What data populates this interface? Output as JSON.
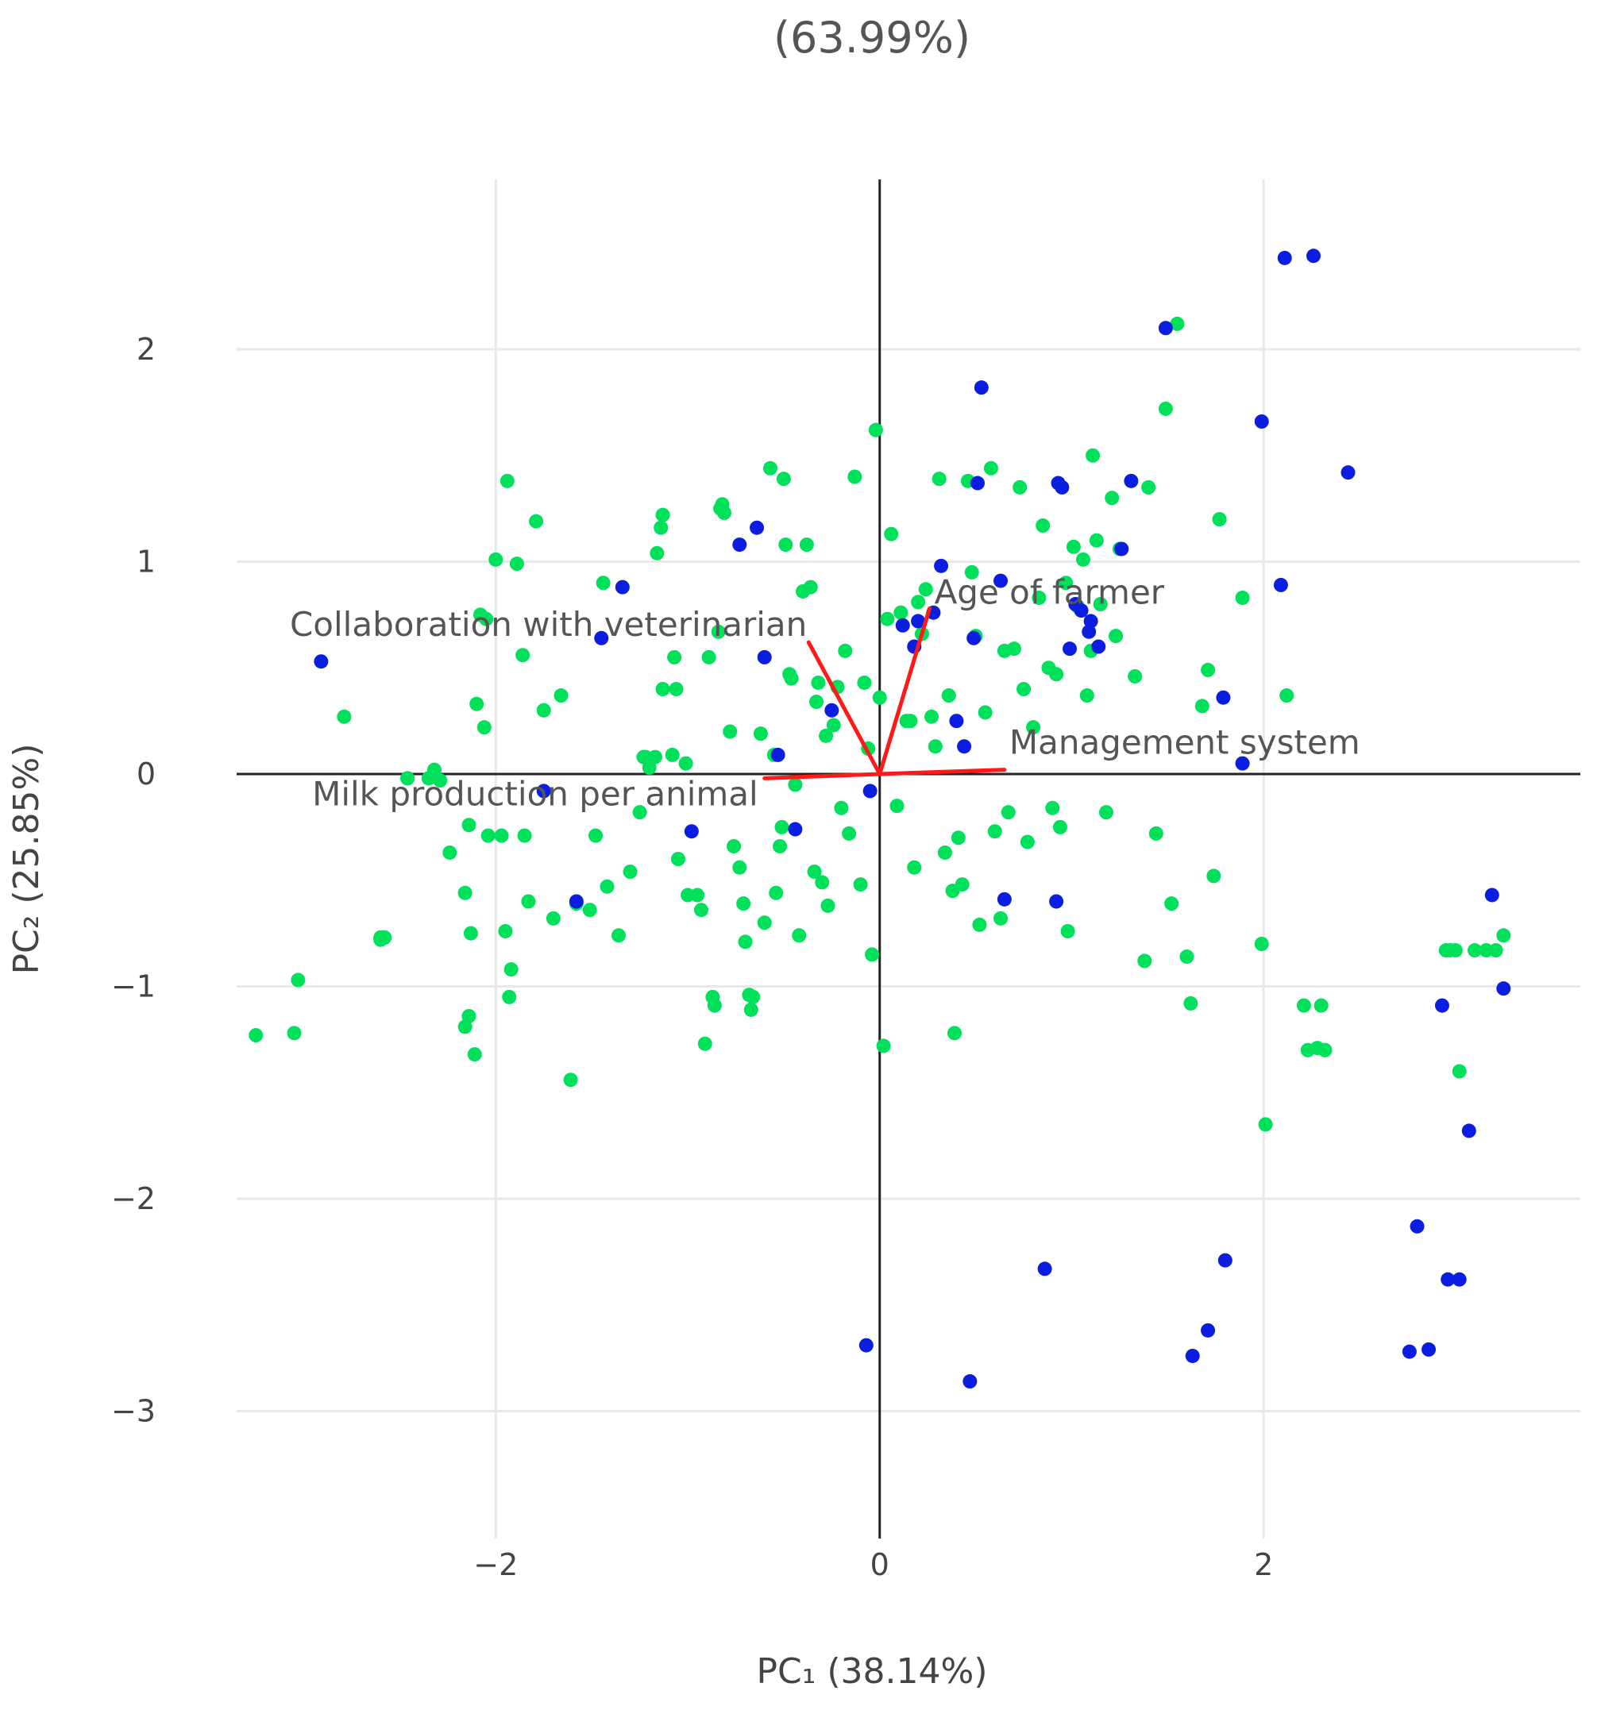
{
  "chart_data": {
    "type": "scatter",
    "title": "(63.99%)",
    "xlabel": "PC₁ (38.14%)",
    "ylabel": "PC₂ (25.85%)",
    "xlim": [
      -3.35,
      3.65
    ],
    "ylim": [
      -3.6,
      2.8
    ],
    "xticks": [
      -2,
      0,
      2
    ],
    "yticks": [
      -3,
      -2,
      -1,
      0,
      1,
      2
    ],
    "tick_labels_x": [
      "−2",
      "0",
      "2"
    ],
    "tick_labels_y": [
      "−3",
      "−2",
      "−1",
      "0",
      "1",
      "2"
    ],
    "grid": true,
    "colors": {
      "green": "#00e05a",
      "blue": "#0b1ee0",
      "loading": "#ff1a1a",
      "axis": "#222222",
      "grid": "#e8e8e8"
    },
    "loadings": [
      {
        "label": "Age of farmer",
        "x": 0.26,
        "y": 0.78
      },
      {
        "label": "Collaboration with veterinarian",
        "x": -0.37,
        "y": 0.62
      },
      {
        "label": "Management system",
        "x": 0.65,
        "y": 0.02
      },
      {
        "label": "Milk production per animal",
        "x": -0.6,
        "y": -0.02
      }
    ],
    "series": [
      {
        "color": "green",
        "points": [
          [
            -3.25,
            -1.23
          ],
          [
            -3.05,
            -1.22
          ],
          [
            -3.03,
            -0.97
          ],
          [
            -2.79,
            0.27
          ],
          [
            -2.6,
            -0.77
          ],
          [
            -2.6,
            -0.77
          ],
          [
            -2.58,
            -0.77
          ],
          [
            -2.58,
            -0.77
          ],
          [
            -2.59,
            -0.77
          ],
          [
            -2.59,
            -0.77
          ],
          [
            -2.58,
            -0.77
          ],
          [
            -2.6,
            -0.77
          ],
          [
            -2.6,
            -0.78
          ],
          [
            -2.6,
            -0.78
          ],
          [
            -2.6,
            -0.77
          ],
          [
            -2.6,
            -0.77
          ],
          [
            -2.46,
            -0.02
          ],
          [
            -2.46,
            -0.02
          ],
          [
            -2.35,
            -0.02
          ],
          [
            -2.32,
            0.02
          ],
          [
            -2.29,
            -0.03
          ],
          [
            -2.24,
            -0.37
          ],
          [
            -2.16,
            -1.19
          ],
          [
            -2.14,
            -1.14
          ],
          [
            -2.11,
            -1.32
          ],
          [
            -2.06,
            0.22
          ],
          [
            -2.05,
            0.73
          ],
          [
            -2.14,
            -0.24
          ],
          [
            -2.16,
            -0.56
          ],
          [
            -2.13,
            -0.75
          ],
          [
            -2.1,
            0.33
          ],
          [
            -2.08,
            0.75
          ],
          [
            -2.04,
            -0.29
          ],
          [
            -2.0,
            1.01
          ],
          [
            -1.97,
            -0.29
          ],
          [
            -1.95,
            -0.74
          ],
          [
            -1.94,
            1.38
          ],
          [
            -1.93,
            -1.05
          ],
          [
            -1.92,
            -0.92
          ],
          [
            -1.89,
            0.99
          ],
          [
            -1.86,
            0.56
          ],
          [
            -1.85,
            -0.29
          ],
          [
            -1.83,
            -0.6
          ],
          [
            -1.79,
            1.19
          ],
          [
            -1.75,
            0.3
          ],
          [
            -1.7,
            -0.68
          ],
          [
            -1.66,
            0.37
          ],
          [
            -1.61,
            -1.44
          ],
          [
            -1.58,
            -0.61
          ],
          [
            -1.51,
            -0.64
          ],
          [
            -1.48,
            -0.29
          ],
          [
            -1.44,
            0.9
          ],
          [
            -1.42,
            -0.53
          ],
          [
            -1.36,
            -0.76
          ],
          [
            -1.3,
            -0.46
          ],
          [
            -1.25,
            -0.18
          ],
          [
            -1.23,
            0.08
          ],
          [
            -1.22,
            0.08
          ],
          [
            -1.2,
            0.03
          ],
          [
            -1.17,
            0.08
          ],
          [
            -1.16,
            1.04
          ],
          [
            -1.14,
            1.16
          ],
          [
            -1.13,
            1.22
          ],
          [
            -1.13,
            0.4
          ],
          [
            -1.08,
            0.09
          ],
          [
            -1.07,
            0.55
          ],
          [
            -1.06,
            0.4
          ],
          [
            -1.05,
            -0.4
          ],
          [
            -1.01,
            0.05
          ],
          [
            -1.0,
            -0.57
          ],
          [
            -0.95,
            -0.57
          ],
          [
            -0.93,
            -0.64
          ],
          [
            -0.91,
            -1.27
          ],
          [
            -0.89,
            0.55
          ],
          [
            -0.87,
            -1.05
          ],
          [
            -0.86,
            -1.09
          ],
          [
            -0.84,
            0.67
          ],
          [
            -0.83,
            1.25
          ],
          [
            -0.82,
            1.27
          ],
          [
            -0.81,
            1.23
          ],
          [
            -0.78,
            0.2
          ],
          [
            -0.76,
            -0.34
          ],
          [
            -0.73,
            -0.44
          ],
          [
            -0.71,
            -0.61
          ],
          [
            -0.7,
            -0.79
          ],
          [
            -0.68,
            -1.04
          ],
          [
            -0.67,
            -1.11
          ],
          [
            -0.66,
            -1.05
          ],
          [
            -0.62,
            0.19
          ],
          [
            -0.6,
            -0.7
          ],
          [
            -0.57,
            1.44
          ],
          [
            -0.55,
            0.09
          ],
          [
            -0.54,
            -0.56
          ],
          [
            -0.52,
            -0.34
          ],
          [
            -0.51,
            -0.25
          ],
          [
            -0.5,
            1.39
          ],
          [
            -0.49,
            1.08
          ],
          [
            -0.47,
            0.47
          ],
          [
            -0.46,
            0.45
          ],
          [
            -0.44,
            -0.05
          ],
          [
            -0.42,
            -0.76
          ],
          [
            -0.4,
            0.86
          ],
          [
            -0.38,
            1.08
          ],
          [
            -0.36,
            0.88
          ],
          [
            -0.34,
            -0.46
          ],
          [
            -0.33,
            0.34
          ],
          [
            -0.32,
            0.43
          ],
          [
            -0.3,
            -0.51
          ],
          [
            -0.28,
            0.18
          ],
          [
            -0.27,
            -0.62
          ],
          [
            -0.24,
            0.23
          ],
          [
            -0.22,
            0.41
          ],
          [
            -0.2,
            -0.16
          ],
          [
            -0.18,
            0.58
          ],
          [
            -0.16,
            -0.28
          ],
          [
            -0.13,
            1.4
          ],
          [
            -0.1,
            -0.52
          ],
          [
            -0.08,
            0.43
          ],
          [
            -0.06,
            0.12
          ],
          [
            -0.04,
            -0.85
          ],
          [
            -0.02,
            1.62
          ],
          [
            0.0,
            0.36
          ],
          [
            0.02,
            -1.28
          ],
          [
            0.04,
            0.73
          ],
          [
            0.06,
            1.13
          ],
          [
            0.09,
            -0.15
          ],
          [
            0.11,
            0.76
          ],
          [
            0.14,
            0.25
          ],
          [
            0.16,
            0.25
          ],
          [
            0.18,
            -0.44
          ],
          [
            0.2,
            0.81
          ],
          [
            0.22,
            0.66
          ],
          [
            0.24,
            0.87
          ],
          [
            0.27,
            0.27
          ],
          [
            0.29,
            0.13
          ],
          [
            0.31,
            1.39
          ],
          [
            0.34,
            -0.37
          ],
          [
            0.36,
            0.37
          ],
          [
            0.38,
            -0.55
          ],
          [
            0.39,
            -1.22
          ],
          [
            0.41,
            -0.3
          ],
          [
            0.43,
            -0.52
          ],
          [
            0.46,
            1.38
          ],
          [
            0.48,
            0.95
          ],
          [
            0.5,
            0.65
          ],
          [
            0.52,
            -0.71
          ],
          [
            0.55,
            0.29
          ],
          [
            0.58,
            1.44
          ],
          [
            0.6,
            -0.27
          ],
          [
            0.63,
            -0.68
          ],
          [
            0.65,
            0.58
          ],
          [
            0.67,
            -0.18
          ],
          [
            0.7,
            0.59
          ],
          [
            0.73,
            1.35
          ],
          [
            0.75,
            0.4
          ],
          [
            0.77,
            -0.32
          ],
          [
            0.8,
            0.22
          ],
          [
            0.83,
            0.83
          ],
          [
            0.85,
            1.17
          ],
          [
            0.88,
            0.5
          ],
          [
            0.9,
            -0.16
          ],
          [
            0.92,
            0.47
          ],
          [
            0.94,
            -0.25
          ],
          [
            0.97,
            0.9
          ],
          [
            0.98,
            -0.74
          ],
          [
            1.01,
            1.07
          ],
          [
            1.03,
            0.79
          ],
          [
            1.06,
            1.01
          ],
          [
            1.08,
            0.37
          ],
          [
            1.1,
            0.58
          ],
          [
            1.11,
            1.5
          ],
          [
            1.13,
            1.1
          ],
          [
            1.15,
            0.8
          ],
          [
            1.18,
            -0.18
          ],
          [
            1.21,
            1.3
          ],
          [
            1.23,
            0.65
          ],
          [
            1.25,
            1.06
          ],
          [
            1.33,
            0.46
          ],
          [
            1.38,
            -0.88
          ],
          [
            1.4,
            1.35
          ],
          [
            1.44,
            -0.28
          ],
          [
            1.49,
            1.72
          ],
          [
            1.52,
            -0.61
          ],
          [
            1.55,
            2.12
          ],
          [
            1.6,
            -0.86
          ],
          [
            1.62,
            -1.08
          ],
          [
            1.68,
            0.32
          ],
          [
            1.71,
            0.49
          ],
          [
            1.74,
            -0.48
          ],
          [
            1.77,
            1.2
          ],
          [
            1.89,
            0.83
          ],
          [
            1.99,
            -0.8
          ],
          [
            2.01,
            -1.65
          ],
          [
            2.12,
            0.37
          ],
          [
            2.21,
            -1.09
          ],
          [
            2.23,
            -1.3
          ],
          [
            2.28,
            -1.29
          ],
          [
            2.3,
            -1.09
          ],
          [
            2.32,
            -1.3
          ],
          [
            2.95,
            -0.83
          ],
          [
            2.97,
            -0.83
          ],
          [
            3.0,
            -0.83
          ],
          [
            3.02,
            -1.4
          ],
          [
            3.1,
            -0.83
          ],
          [
            3.16,
            -0.83
          ],
          [
            3.21,
            -0.83
          ],
          [
            3.25,
            -0.76
          ]
        ]
      },
      {
        "color": "blue",
        "points": [
          [
            -2.91,
            0.53
          ],
          [
            -1.75,
            -0.08
          ],
          [
            -1.58,
            -0.6
          ],
          [
            -1.45,
            0.64
          ],
          [
            -1.34,
            0.88
          ],
          [
            -0.98,
            -0.27
          ],
          [
            -0.73,
            1.08
          ],
          [
            -0.64,
            1.16
          ],
          [
            -0.6,
            0.55
          ],
          [
            -0.53,
            0.09
          ],
          [
            -0.44,
            -0.26
          ],
          [
            -0.25,
            0.3
          ],
          [
            -0.05,
            -0.08
          ],
          [
            0.12,
            0.7
          ],
          [
            0.18,
            0.6
          ],
          [
            0.2,
            0.72
          ],
          [
            0.28,
            0.76
          ],
          [
            0.32,
            0.98
          ],
          [
            0.4,
            0.25
          ],
          [
            0.44,
            0.13
          ],
          [
            0.49,
            0.64
          ],
          [
            0.51,
            1.37
          ],
          [
            0.53,
            1.82
          ],
          [
            0.63,
            0.91
          ],
          [
            0.65,
            -0.59
          ],
          [
            0.86,
            -2.33
          ],
          [
            0.92,
            -0.6
          ],
          [
            0.93,
            1.37
          ],
          [
            0.95,
            1.35
          ],
          [
            0.99,
            0.59
          ],
          [
            1.02,
            0.8
          ],
          [
            1.05,
            0.77
          ],
          [
            1.09,
            0.67
          ],
          [
            1.1,
            0.72
          ],
          [
            1.14,
            0.6
          ],
          [
            1.26,
            1.06
          ],
          [
            1.31,
            1.38
          ],
          [
            1.49,
            2.1
          ],
          [
            1.63,
            -2.74
          ],
          [
            1.71,
            -2.62
          ],
          [
            1.79,
            0.36
          ],
          [
            1.8,
            -2.29
          ],
          [
            1.89,
            0.05
          ],
          [
            1.99,
            1.66
          ],
          [
            2.09,
            0.89
          ],
          [
            2.11,
            2.43
          ],
          [
            2.26,
            2.44
          ],
          [
            2.44,
            1.42
          ],
          [
            2.76,
            -2.72
          ],
          [
            2.8,
            -2.13
          ],
          [
            2.86,
            -2.71
          ],
          [
            2.93,
            -1.09
          ],
          [
            2.96,
            -2.38
          ],
          [
            3.02,
            -2.38
          ],
          [
            3.07,
            -1.68
          ],
          [
            3.19,
            -0.57
          ],
          [
            3.25,
            -1.01
          ],
          [
            -0.07,
            -2.69
          ],
          [
            0.47,
            -2.86
          ]
        ]
      }
    ]
  }
}
